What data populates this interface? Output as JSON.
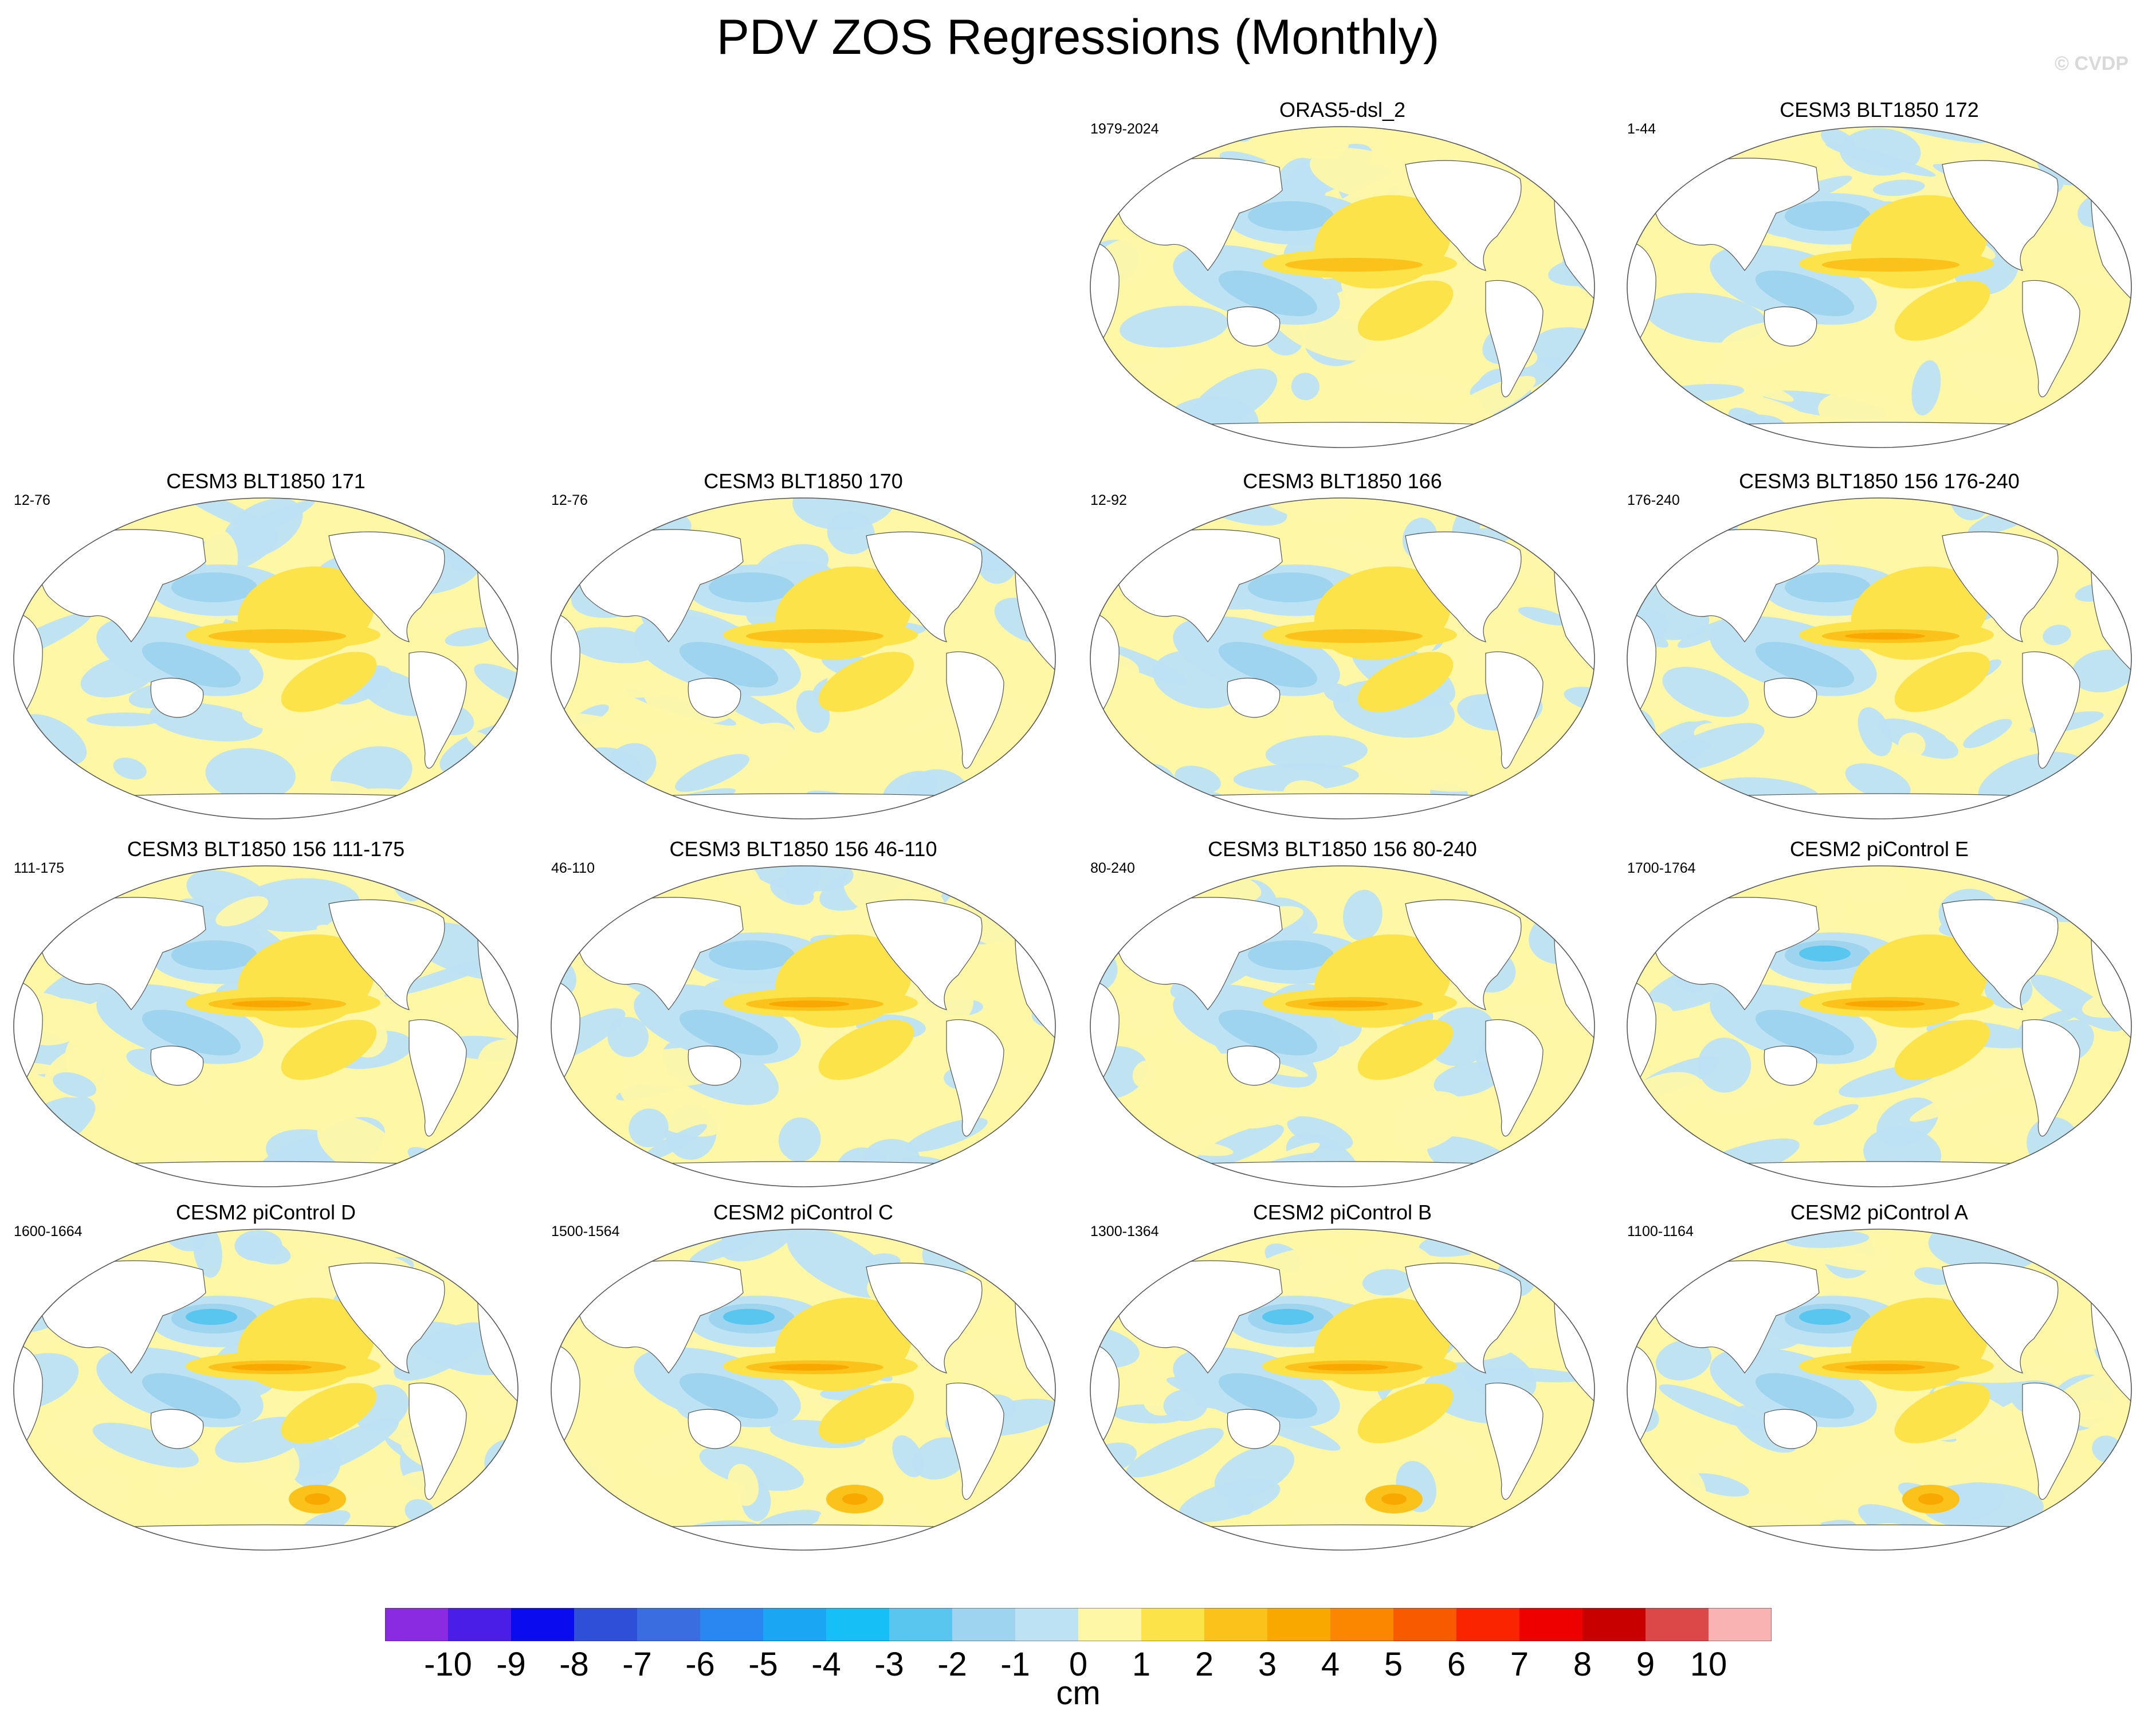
{
  "title": "PDV ZOS Regressions (Monthly)",
  "watermark": "© CVDP",
  "chart_data": {
    "type": "heatmap",
    "projection": "Robinson (Pacific-centered) global maps",
    "variable": "ZOS (sea surface height) regression onto PDV",
    "panels": [
      {
        "title": "ORAS5-dsl_2",
        "years": "1979-2024"
      },
      {
        "title": "CESM3 BLT1850 172",
        "years": "1-44"
      },
      {
        "title": "CESM3 BLT1850 171",
        "years": "12-76"
      },
      {
        "title": "CESM3 BLT1850 170",
        "years": "12-76"
      },
      {
        "title": "CESM3 BLT1850 166",
        "years": "12-92"
      },
      {
        "title": "CESM3 BLT1850 156 176-240",
        "years": "176-240"
      },
      {
        "title": "CESM3 BLT1850 156 111-175",
        "years": "111-175"
      },
      {
        "title": "CESM3 BLT1850 156 46-110",
        "years": "46-110"
      },
      {
        "title": "CESM3 BLT1850 156 80-240",
        "years": "80-240"
      },
      {
        "title": "CESM2 piControl E",
        "years": "1700-1764"
      },
      {
        "title": "CESM2 piControl D",
        "years": "1600-1664"
      },
      {
        "title": "CESM2 piControl C",
        "years": "1500-1564"
      },
      {
        "title": "CESM2 piControl B",
        "years": "1300-1364"
      },
      {
        "title": "CESM2 piControl A",
        "years": "1100-1164"
      }
    ],
    "colorbar": {
      "unit": "cm",
      "labels": [
        "-10",
        "-9",
        "-8",
        "-7",
        "-6",
        "-5",
        "-4",
        "-3",
        "-2",
        "-1",
        "0",
        "1",
        "2",
        "3",
        "4",
        "5",
        "6",
        "7",
        "8",
        "9",
        "10"
      ],
      "colors": [
        "#8a2be2",
        "#4b1ee8",
        "#0b0bf0",
        "#2f4fd8",
        "#3a6ee0",
        "#2a86f0",
        "#1aa6f2",
        "#16bff5",
        "#58c6ee",
        "#9fd4ee",
        "#bde2f4",
        "#fdf7a6",
        "#fde34a",
        "#fbc21b",
        "#f9a800",
        "#fb8600",
        "#f85a00",
        "#fa2500",
        "#ee0000",
        "#c80000",
        "#dc4848",
        "#f9b3b3"
      ]
    }
  }
}
